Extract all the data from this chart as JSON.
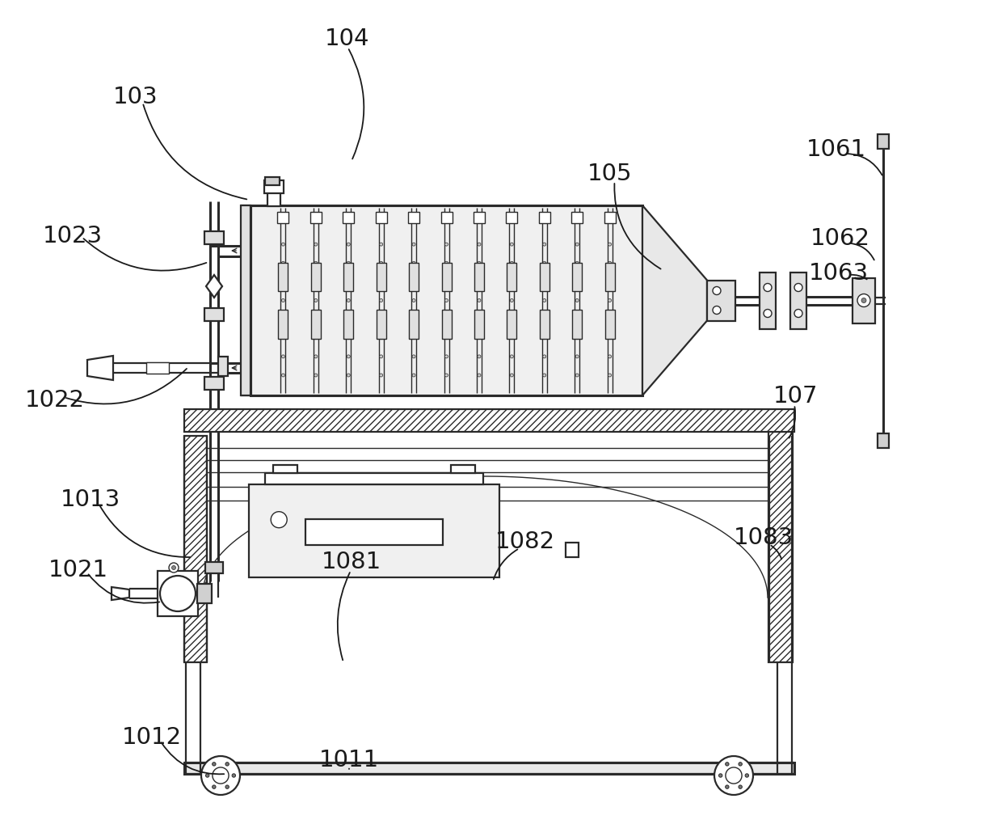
{
  "bg_color": "#ffffff",
  "lc": "#2a2a2a",
  "lw": 1.6,
  "lw_thick": 2.2,
  "lw_thin": 1.0,
  "labels": [
    [
      "104",
      430,
      48,
      435,
      200,
      -0.25
    ],
    [
      "103",
      168,
      120,
      308,
      248,
      0.3
    ],
    [
      "1061",
      1035,
      185,
      1093,
      220,
      -0.3
    ],
    [
      "105",
      755,
      215,
      820,
      335,
      0.3
    ],
    [
      "1062",
      1040,
      295,
      1083,
      325,
      -0.3
    ],
    [
      "1063",
      1038,
      338,
      1075,
      348,
      -0.2
    ],
    [
      "1023",
      90,
      292,
      258,
      325,
      0.3
    ],
    [
      "1022",
      68,
      495,
      233,
      455,
      0.3
    ],
    [
      "107",
      985,
      490,
      975,
      545,
      -0.2
    ],
    [
      "1013",
      112,
      618,
      238,
      690,
      0.3
    ],
    [
      "1021",
      97,
      705,
      200,
      745,
      0.3
    ],
    [
      "1083",
      945,
      665,
      968,
      695,
      -0.2
    ],
    [
      "1081",
      435,
      695,
      425,
      820,
      0.2
    ],
    [
      "1082",
      650,
      670,
      610,
      720,
      0.2
    ],
    [
      "1011",
      432,
      940,
      432,
      952,
      0.0
    ],
    [
      "1012",
      188,
      912,
      280,
      958,
      0.3
    ]
  ],
  "label_fs": 21
}
